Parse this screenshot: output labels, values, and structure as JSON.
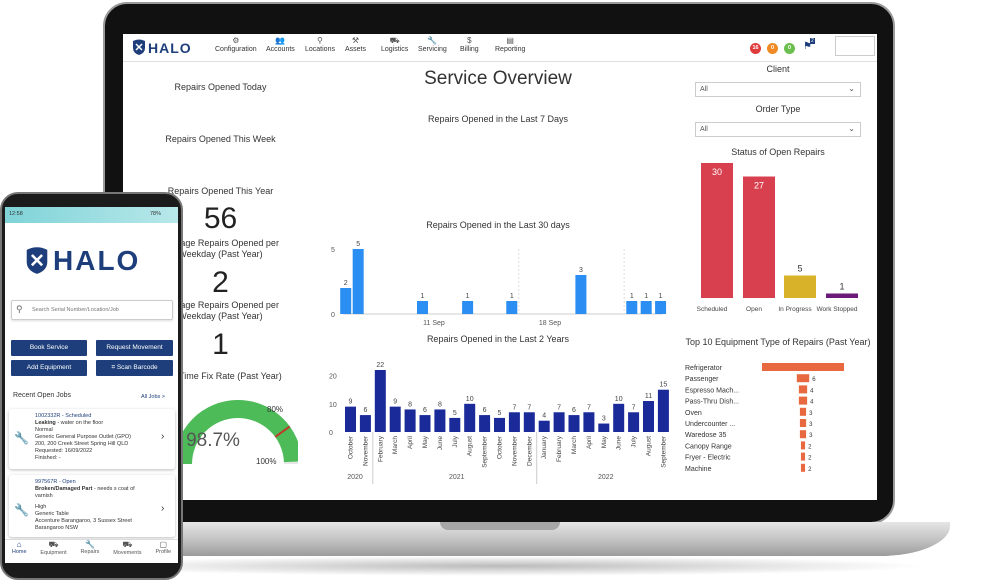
{
  "brand": "HALO",
  "nav": [
    {
      "label": "Configuration",
      "icon": "gear-icon",
      "glyph": "⚙"
    },
    {
      "label": "Accounts",
      "icon": "people-icon",
      "glyph": "👥"
    },
    {
      "label": "Locations",
      "icon": "pin-icon",
      "glyph": "⚲"
    },
    {
      "label": "Assets",
      "icon": "assets-icon",
      "glyph": "⚒"
    },
    {
      "label": "Logistics",
      "icon": "truck-icon",
      "glyph": "⛟"
    },
    {
      "label": "Servicing",
      "icon": "wrench-icon",
      "glyph": "🔧"
    },
    {
      "label": "Billing",
      "icon": "dollar-icon",
      "glyph": "$"
    },
    {
      "label": "Reporting",
      "icon": "report-icon",
      "glyph": "▤"
    }
  ],
  "badges": {
    "red": "16",
    "orange": "0",
    "green": "0",
    "flag": "2"
  },
  "dashboard": {
    "title": "Service Overview",
    "kpi_today": "Repairs Opened Today",
    "kpi_week": "Repairs Opened This Week",
    "kpi_year": "Repairs Opened This Year",
    "kpi_year_value": "56",
    "kpi_avg_label_1": "Average Repairs Opened per",
    "kpi_avg_label_2": "Weekday (Past Year)",
    "kpi_avg_value": "2",
    "kpi_avg2_label_1": "Average Repairs Opened per",
    "kpi_avg2_label_2": "Weekday (Past Year)",
    "kpi_ftf_value": "1",
    "kpi_ftf_label": "First Time Fix Rate (Past Year)",
    "gauge_value": "98.7%",
    "gauge_target": "80%",
    "gauge_max": "100%",
    "gauge_fraction": 0.987,
    "gauge_target_fraction": 0.8
  },
  "filters": {
    "client_label": "Client",
    "client_value": "All",
    "order_label": "Order Type",
    "order_value": "All"
  },
  "chart_data": [
    {
      "type": "bar",
      "title": "Repairs Opened in the Last 7 Days",
      "categories": [],
      "values": []
    },
    {
      "type": "bar",
      "title": "Repairs Opened in the Last 30 days",
      "x": [
        "Aug 30",
        "Aug 31",
        "Sep 1",
        "Sep 7",
        "Sep 10",
        "Sep 14",
        "Sep 17",
        "Sep 19",
        "Sep 20"
      ],
      "values": [
        2,
        5,
        1,
        1,
        1,
        3,
        1,
        1,
        1
      ],
      "tick_labels": [
        "04 Sep",
        "11 Sep",
        "18 Sep"
      ],
      "ylim": [
        0,
        5
      ],
      "yticks": [
        "0",
        "5"
      ]
    },
    {
      "type": "bar",
      "title": "Repairs Opened in the Last 2 Years",
      "categories": [
        "October",
        "November",
        "February",
        "March",
        "April",
        "May",
        "June",
        "July",
        "August",
        "September",
        "October",
        "November",
        "December",
        "January",
        "February",
        "March",
        "April",
        "May",
        "June",
        "July",
        "August",
        "September"
      ],
      "values": [
        9,
        6,
        22,
        9,
        8,
        6,
        8,
        5,
        10,
        6,
        5,
        7,
        7,
        4,
        7,
        6,
        7,
        3,
        10,
        7,
        11,
        15
      ],
      "year_labels": [
        "2020",
        "2021",
        "2022"
      ],
      "ylim": [
        0,
        22
      ],
      "yticks": [
        "0",
        "10",
        "20"
      ]
    },
    {
      "type": "bar",
      "title": "Status of Open Repairs",
      "categories": [
        "Scheduled",
        "Open",
        "In Progress",
        "Work Stopped"
      ],
      "values": [
        30,
        27,
        5,
        1
      ],
      "colors": [
        "#d9404f",
        "#d9404f",
        "#d8b32a",
        "#6a1b7a"
      ]
    },
    {
      "type": "bar",
      "orientation": "horizontal",
      "title": "Top 10 Equipment Type of Repairs (Past Year)",
      "categories": [
        "Refrigerator",
        "Passenger",
        "Espresso Mach...",
        "Pass-Thru Dish...",
        "Oven",
        "Undercounter ...",
        "Waredose 35",
        "Canopy Range",
        "Fryer - Electric",
        "Machine"
      ],
      "values": [
        30,
        6,
        4,
        4,
        3,
        3,
        3,
        2,
        2,
        2
      ]
    }
  ],
  "phone": {
    "time": "12:58",
    "battery": "78%",
    "search_placeholder": "Search Serial Number/Location/Job",
    "buttons": [
      "Book Service",
      "Request Movement",
      "Add Equipment",
      "Scan Barcode"
    ],
    "recent_title": "Recent Open Jobs",
    "all_jobs": "All Jobs >",
    "job1": {
      "id": "1002332R - Scheduled",
      "issue": "Leaking",
      "issue_desc": " - water on the floor",
      "priority": "Normal",
      "equipment": "Generic General Purpose Outlet (GPO)",
      "address": "200, 200 Creek Street Spring Hill QLD",
      "requested": "Requested: 16/09/2022",
      "finished": "Finished: -"
    },
    "job2": {
      "id": "997567R - Open",
      "issue": "Broken/Damaged Part",
      "issue_desc": " - needs s coat of",
      "issue_desc2": "varnish",
      "priority": "High",
      "equipment": "Generic Table",
      "address": "Accenture Barangaroo, 3 Sussex Street",
      "address2": "Barangaroo NSW"
    },
    "tabs": [
      "Home",
      "Equipment",
      "Repairs",
      "Movements",
      "Profile"
    ]
  }
}
